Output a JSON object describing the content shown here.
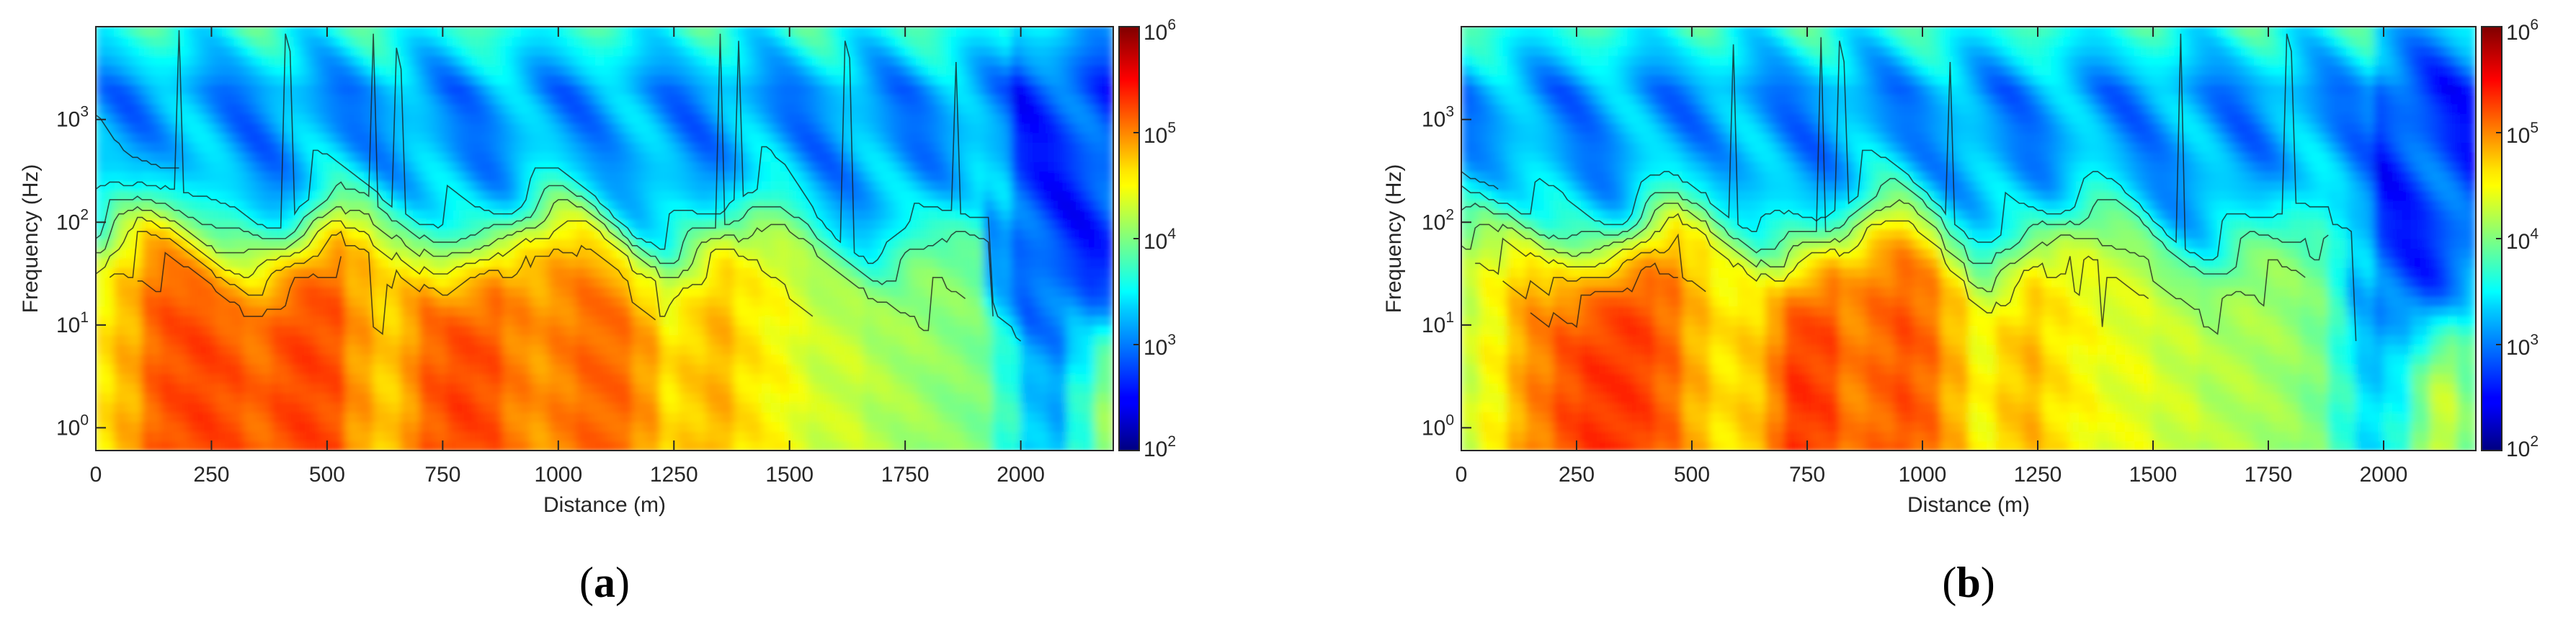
{
  "chart_data": [
    {
      "type": "heatmap",
      "panel": "a",
      "caption_letter": "a",
      "xlabel": "Distance (m)",
      "ylabel": "Frequency (Hz)",
      "xlim": [
        0,
        2200
      ],
      "ylim": [
        0.6,
        8000
      ],
      "yscale": "log",
      "xticks": [
        0,
        250,
        500,
        750,
        1000,
        1250,
        1500,
        1750,
        2000
      ],
      "yticks": [
        1,
        10,
        100,
        1000
      ],
      "colorbar": {
        "scale": "log",
        "range": [
          100,
          1000000
        ],
        "ticks": [
          100,
          1000,
          10000,
          100000,
          1000000
        ],
        "colormap": "jet"
      },
      "contours": true,
      "profile_low_freq_level_log10": [
        4.6,
        4.8,
        5.1,
        5.2,
        5.25,
        5.2,
        5.1,
        5.2,
        5.25,
        5.2,
        4.9,
        4.7,
        4.9,
        5.15,
        5.25,
        5.2,
        5.0,
        4.9,
        5.0,
        5.1,
        5.1,
        4.9,
        4.6,
        4.7,
        4.8,
        4.6,
        4.5,
        4.4,
        4.3,
        4.3,
        4.2,
        4.15,
        4.1,
        4.05,
        4.0,
        3.7,
        3.3,
        3.2,
        3.7,
        4.1
      ]
    },
    {
      "type": "heatmap",
      "panel": "b",
      "caption_letter": "b",
      "xlabel": "Distance (m)",
      "ylabel": "Frequency (Hz)",
      "xlim": [
        0,
        2200
      ],
      "ylim": [
        0.6,
        8000
      ],
      "yscale": "log",
      "xticks": [
        0,
        250,
        500,
        750,
        1000,
        1250,
        1500,
        1750,
        2000
      ],
      "yticks": [
        1,
        10,
        100,
        1000
      ],
      "colorbar": {
        "scale": "log",
        "range": [
          100,
          1000000
        ],
        "ticks": [
          100,
          1000,
          10000,
          100000,
          1000000
        ],
        "colormap": "jet"
      },
      "contours": true,
      "profile_low_freq_level_log10": [
        4.3,
        4.5,
        4.8,
        5.0,
        5.2,
        5.3,
        5.3,
        5.25,
        5.1,
        4.8,
        4.6,
        4.7,
        5.0,
        5.3,
        5.25,
        5.0,
        5.1,
        5.2,
        5.1,
        4.8,
        4.5,
        4.7,
        4.8,
        4.6,
        4.5,
        4.4,
        4.4,
        4.3,
        4.3,
        4.2,
        4.2,
        4.15,
        4.1,
        4.0,
        3.7,
        3.4,
        3.6,
        4.0,
        4.3,
        4.0
      ]
    }
  ]
}
